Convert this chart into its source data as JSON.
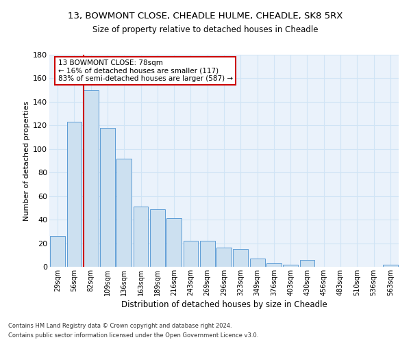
{
  "title1": "13, BOWMONT CLOSE, CHEADLE HULME, CHEADLE, SK8 5RX",
  "title2": "Size of property relative to detached houses in Cheadle",
  "xlabel": "Distribution of detached houses by size in Cheadle",
  "ylabel": "Number of detached properties",
  "footnote1": "Contains HM Land Registry data © Crown copyright and database right 2024.",
  "footnote2": "Contains public sector information licensed under the Open Government Licence v3.0.",
  "bar_labels": [
    "29sqm",
    "56sqm",
    "82sqm",
    "109sqm",
    "136sqm",
    "163sqm",
    "189sqm",
    "216sqm",
    "243sqm",
    "269sqm",
    "296sqm",
    "323sqm",
    "349sqm",
    "376sqm",
    "403sqm",
    "430sqm",
    "456sqm",
    "483sqm",
    "510sqm",
    "536sqm",
    "563sqm"
  ],
  "bar_values": [
    26,
    123,
    150,
    118,
    92,
    51,
    49,
    41,
    22,
    22,
    16,
    15,
    7,
    3,
    2,
    6,
    0,
    0,
    0,
    0,
    2
  ],
  "bar_color": "#cce0f0",
  "bar_edgecolor": "#5b9bd5",
  "grid_color": "#d0e4f5",
  "bg_color": "#eaf2fb",
  "vline_color": "#cc0000",
  "annotation_text": "13 BOWMONT CLOSE: 78sqm\n← 16% of detached houses are smaller (117)\n83% of semi-detached houses are larger (587) →",
  "annotation_box_color": "#cc0000",
  "ylim": [
    0,
    180
  ],
  "yticks": [
    0,
    20,
    40,
    60,
    80,
    100,
    120,
    140,
    160,
    180
  ]
}
